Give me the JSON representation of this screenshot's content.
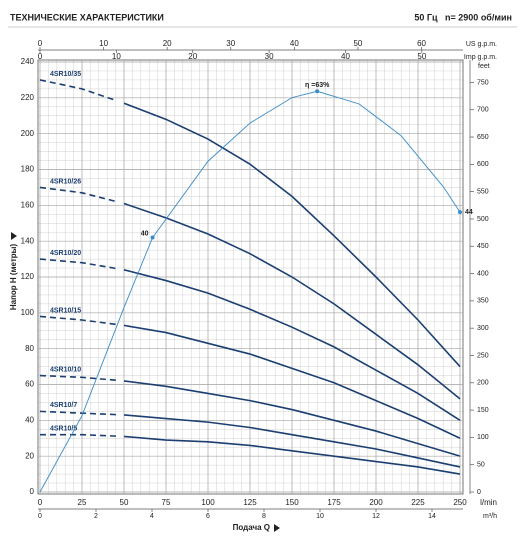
{
  "chart_data": {
    "type": "line",
    "title": "ТЕХНИЧЕСКИЕ ХАРАКТЕРИСТИКИ",
    "subtitle": "50 Гц   n= 2900 об/мин",
    "xlabel": "Подача Q",
    "ylabel": "Напор H (метры)",
    "xunit": "l/min",
    "x": [
      0,
      25,
      50,
      75,
      100,
      125,
      150,
      175,
      200,
      225,
      250
    ],
    "xlim": [
      0,
      250
    ],
    "xticks": [
      0,
      25,
      50,
      75,
      100,
      125,
      150,
      175,
      200,
      225,
      250
    ],
    "ylim": [
      0,
      240
    ],
    "yticks": [
      0,
      20,
      40,
      60,
      80,
      100,
      120,
      140,
      160,
      180,
      200,
      220,
      240
    ],
    "grid": true,
    "dashed_xlim": [
      0,
      50
    ],
    "series": [
      {
        "name": "4SR10/35",
        "color": "#1c3f72",
        "values": [
          230,
          225,
          217,
          208,
          197,
          183,
          165,
          143,
          120,
          96,
          70
        ]
      },
      {
        "name": "4SR10/26",
        "color": "#1c3f72",
        "values": [
          170,
          167,
          161,
          153,
          144,
          133,
          120,
          105,
          88,
          71,
          52
        ]
      },
      {
        "name": "4SR10/20",
        "color": "#1c3f72",
        "values": [
          130,
          128,
          124,
          118,
          111,
          102,
          92,
          81,
          68,
          55,
          40
        ]
      },
      {
        "name": "4SR10/15",
        "color": "#1c3f72",
        "values": [
          98,
          96,
          93,
          89,
          83,
          77,
          69,
          61,
          51,
          41,
          30
        ]
      },
      {
        "name": "4SR10/10",
        "color": "#1c3f72",
        "values": [
          65,
          64,
          62,
          59,
          55,
          51,
          46,
          40,
          34,
          27,
          20
        ]
      },
      {
        "name": "4SR10/7",
        "color": "#1c3f72",
        "values": [
          45,
          44,
          43,
          41,
          39,
          36,
          32,
          28,
          24,
          19,
          14
        ]
      },
      {
        "name": "4SR10/5",
        "color": "#1c3f72",
        "values": [
          32,
          32,
          31,
          29,
          28,
          26,
          23,
          20,
          17,
          14,
          10
        ]
      }
    ],
    "efficiency": {
      "axis": "y2",
      "color": "#3a8cc8",
      "x": [
        0,
        25,
        50,
        67,
        100,
        125,
        150,
        165,
        190,
        215,
        240,
        250
      ],
      "values": [
        0,
        12,
        29,
        40,
        52,
        58,
        62,
        63,
        61,
        56,
        48,
        44
      ],
      "value_labels": [
        null,
        null,
        null,
        "40",
        null,
        null,
        null,
        "η =63%",
        null,
        null,
        null,
        "44"
      ]
    },
    "y2lim": [
      0,
      67.6
    ],
    "extra_axes": [
      {
        "side": "top",
        "label": "US g.p.m.",
        "lim": [
          0,
          66.05
        ],
        "ticks": [
          0,
          10,
          20,
          30,
          40,
          50,
          60
        ]
      },
      {
        "side": "top",
        "label": "Imp g.p.m.",
        "lim": [
          0,
          54.99
        ],
        "ticks": [
          0,
          10,
          20,
          30,
          40,
          50
        ]
      },
      {
        "side": "bottom",
        "label": "m³/h",
        "lim": [
          0,
          15
        ],
        "ticks": [
          0,
          2,
          4,
          6,
          8,
          10,
          12,
          14
        ]
      },
      {
        "side": "right",
        "label": "feet",
        "lim": [
          0,
          787.4
        ],
        "ticks": [
          0,
          50,
          100,
          150,
          200,
          250,
          300,
          350,
          400,
          450,
          500,
          550,
          600,
          650,
          700,
          750
        ]
      }
    ]
  }
}
